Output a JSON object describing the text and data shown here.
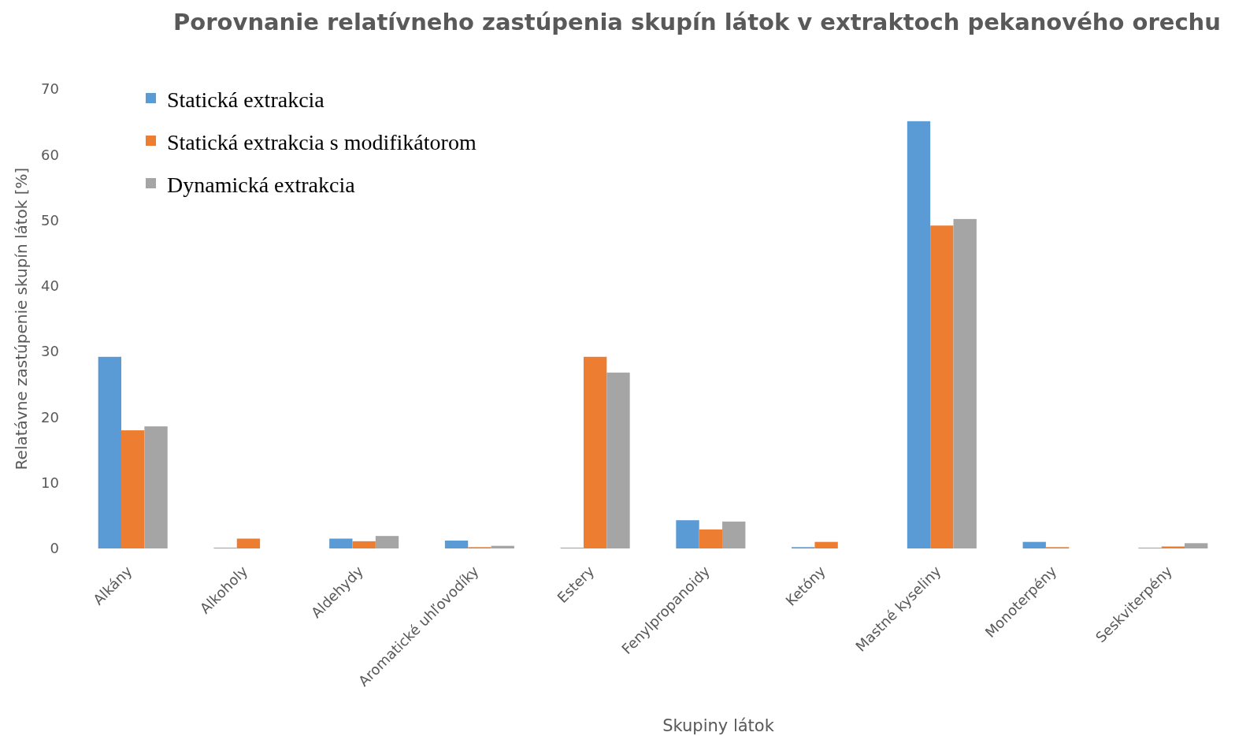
{
  "chart_data": {
    "type": "bar",
    "title": "Porovnanie relatívneho zastúpenia skupín látok v extraktoch pekanového orechu",
    "xlabel": "Skupiny látok",
    "ylabel": "Relatávne zastúpenie skupín látok [%]",
    "categories": [
      "Alkány",
      "Alkoholy",
      "Aldehydy",
      "Aromatické uhľovodíky",
      "Estery",
      "Fenylpropanoidy",
      "Ketóny",
      "Mastné kyseliny",
      "Monoterpény",
      "Seskviterpény"
    ],
    "series": [
      {
        "name": "Statická extrakcia",
        "color": "#5b9bd5",
        "values": [
          29.2,
          0.1,
          1.5,
          1.2,
          0.1,
          4.3,
          0.2,
          65.1,
          1.0,
          0.1
        ]
      },
      {
        "name": "Statická extrakcia s modifikátorom",
        "color": "#ed7d31",
        "values": [
          18.0,
          1.5,
          1.1,
          0.2,
          29.2,
          2.9,
          1.0,
          49.2,
          0.2,
          0.3
        ]
      },
      {
        "name": "Dynamická extrakcia",
        "color": "#a5a5a5",
        "values": [
          18.6,
          0,
          1.9,
          0.4,
          26.8,
          4.1,
          0,
          50.2,
          0,
          0.8
        ]
      }
    ],
    "ylim": [
      0,
      70
    ],
    "yticks": [
      0,
      10,
      20,
      30,
      40,
      50,
      60,
      70
    ],
    "grid": false,
    "legend": "top left"
  }
}
